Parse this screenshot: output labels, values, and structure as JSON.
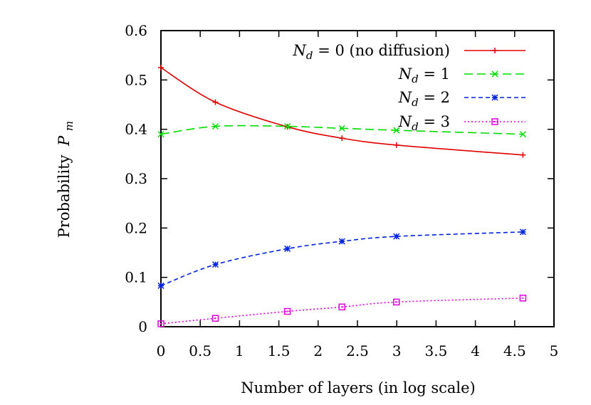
{
  "chart_data": {
    "type": "line",
    "title": "",
    "xlabel": "Number of layers (in log scale)",
    "ylabel_text": "Probability",
    "ylabel_symbol": "P",
    "ylabel_subscript": "m",
    "xlim": [
      0,
      5
    ],
    "ylim": [
      0,
      0.6
    ],
    "xticks": [
      0,
      0.5,
      1,
      1.5,
      2,
      2.5,
      3,
      3.5,
      4,
      4.5,
      5
    ],
    "xtick_labels": [
      "0",
      "0.5",
      "1",
      "1.5",
      "2",
      "2.5",
      "3",
      "3.5",
      "4",
      "4.5",
      "5"
    ],
    "yticks": [
      0,
      0.1,
      0.2,
      0.3,
      0.4,
      0.5,
      0.6
    ],
    "ytick_labels": [
      "0",
      "0.1",
      "0.2",
      "0.3",
      "0.4",
      "0.5",
      "0.6"
    ],
    "grid": false,
    "legend_position": "top-right",
    "x": [
      0,
      0.693,
      1.609,
      2.303,
      2.996,
      4.605
    ],
    "series": [
      {
        "name": "N_d = 0 (no diffusion)",
        "legend_var": "N",
        "legend_sub": "d",
        "legend_rest": " = 0 (no diffusion)",
        "values": [
          0.525,
          0.455,
          0.405,
          0.382,
          0.368,
          0.348
        ],
        "color": "#e00000",
        "dash": "none",
        "marker": "plus"
      },
      {
        "name": "N_d = 1",
        "legend_var": "N",
        "legend_sub": "d",
        "legend_rest": " = 1",
        "values": [
          0.39,
          0.406,
          0.406,
          0.402,
          0.398,
          0.39
        ],
        "color": "#00dd00",
        "dash": "12,6",
        "marker": "cross"
      },
      {
        "name": "N_d = 2",
        "legend_var": "N",
        "legend_sub": "d",
        "legend_rest": " = 2",
        "values": [
          0.083,
          0.126,
          0.158,
          0.173,
          0.183,
          0.192
        ],
        "color": "#0022dd",
        "dash": "6,4",
        "marker": "star"
      },
      {
        "name": "N_d = 3",
        "legend_var": "N",
        "legend_sub": "d",
        "legend_rest": " = 3",
        "values": [
          0.006,
          0.017,
          0.031,
          0.04,
          0.05,
          0.058
        ],
        "color": "#e000e0",
        "dash": "2,3",
        "marker": "square"
      }
    ]
  }
}
